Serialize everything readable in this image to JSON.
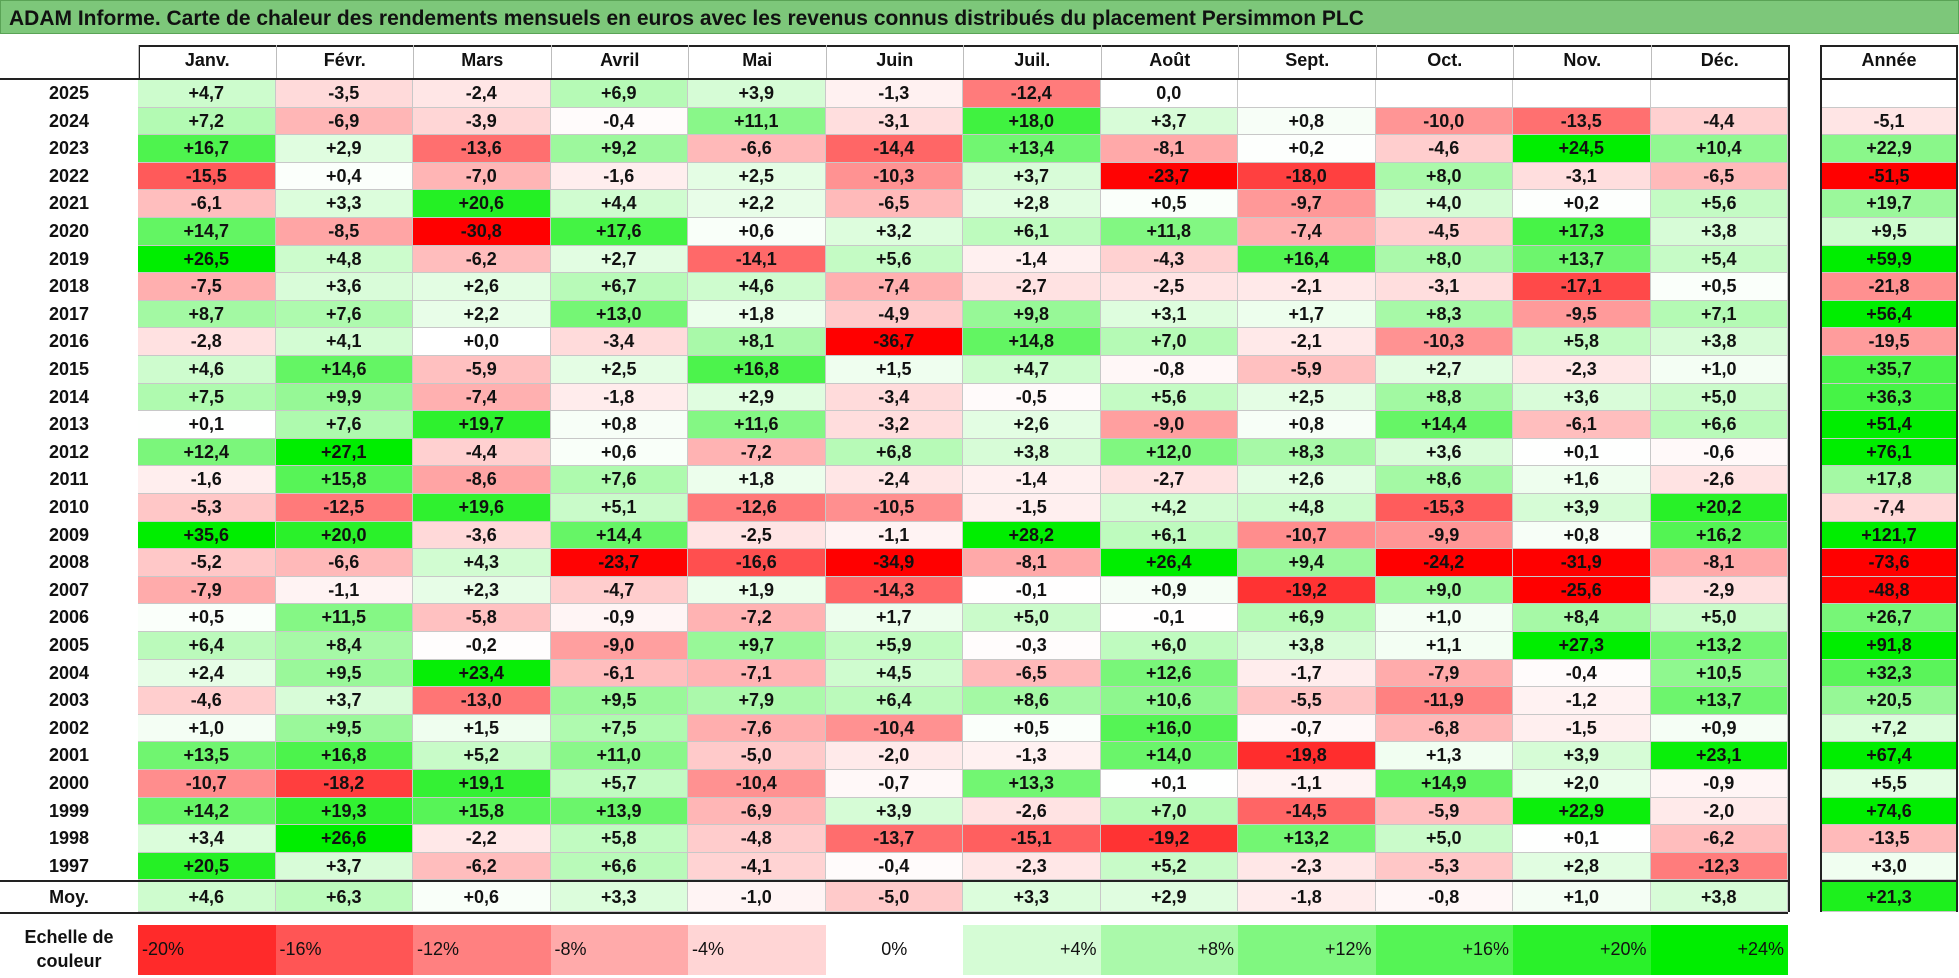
{
  "title": "ADAM Informe. Carte de chaleur des rendements mensuels en euros avec les revenus connus distribués du placement Persimmon PLC",
  "chart_data": {
    "type": "heatmap",
    "title": "ADAM Informe. Carte de chaleur des rendements mensuels en euros avec les revenus connus distribués du placement Persimmon PLC",
    "columns": [
      "Janv.",
      "Févr.",
      "Mars",
      "Avril",
      "Mai",
      "Juin",
      "Juil.",
      "Août",
      "Sept.",
      "Oct.",
      "Nov.",
      "Déc."
    ],
    "year_header": "Année",
    "rows": [
      {
        "year": "2025",
        "values": [
          "+4,7",
          "-3,5",
          "-2,4",
          "+6,9",
          "+3,9",
          "-1,3",
          "-12,4",
          "0,0",
          "",
          "",
          "",
          ""
        ],
        "annual": ""
      },
      {
        "year": "2024",
        "values": [
          "+7,2",
          "-6,9",
          "-3,9",
          "-0,4",
          "+11,1",
          "-3,1",
          "+18,0",
          "+3,7",
          "+0,8",
          "-10,0",
          "-13,5",
          "-4,4"
        ],
        "annual": "-5,1"
      },
      {
        "year": "2023",
        "values": [
          "+16,7",
          "+2,9",
          "-13,6",
          "+9,2",
          "-6,6",
          "-14,4",
          "+13,4",
          "-8,1",
          "+0,2",
          "-4,6",
          "+24,5",
          "+10,4"
        ],
        "annual": "+22,9"
      },
      {
        "year": "2022",
        "values": [
          "-15,5",
          "+0,4",
          "-7,0",
          "-1,6",
          "+2,5",
          "-10,3",
          "+3,7",
          "-23,7",
          "-18,0",
          "+8,0",
          "-3,1",
          "-6,5"
        ],
        "annual": "-51,5"
      },
      {
        "year": "2021",
        "values": [
          "-6,1",
          "+3,3",
          "+20,6",
          "+4,4",
          "+2,2",
          "-6,5",
          "+2,8",
          "+0,5",
          "-9,7",
          "+4,0",
          "+0,2",
          "+5,6"
        ],
        "annual": "+19,7"
      },
      {
        "year": "2020",
        "values": [
          "+14,7",
          "-8,5",
          "-30,8",
          "+17,6",
          "+0,6",
          "+3,2",
          "+6,1",
          "+11,8",
          "-7,4",
          "-4,5",
          "+17,3",
          "+3,8"
        ],
        "annual": "+9,5"
      },
      {
        "year": "2019",
        "values": [
          "+26,5",
          "+4,8",
          "-6,2",
          "+2,7",
          "-14,1",
          "+5,6",
          "-1,4",
          "-4,3",
          "+16,4",
          "+8,0",
          "+13,7",
          "+5,4"
        ],
        "annual": "+59,9"
      },
      {
        "year": "2018",
        "values": [
          "-7,5",
          "+3,6",
          "+2,6",
          "+6,7",
          "+4,6",
          "-7,4",
          "-2,7",
          "-2,5",
          "-2,1",
          "-3,1",
          "-17,1",
          "+0,5"
        ],
        "annual": "-21,8"
      },
      {
        "year": "2017",
        "values": [
          "+8,7",
          "+7,6",
          "+2,2",
          "+13,0",
          "+1,8",
          "-4,9",
          "+9,8",
          "+3,1",
          "+1,7",
          "+8,3",
          "-9,5",
          "+7,1"
        ],
        "annual": "+56,4"
      },
      {
        "year": "2016",
        "values": [
          "-2,8",
          "+4,1",
          "+0,0",
          "-3,4",
          "+8,1",
          "-36,7",
          "+14,8",
          "+7,0",
          "-2,1",
          "-10,3",
          "+5,8",
          "+3,8"
        ],
        "annual": "-19,5"
      },
      {
        "year": "2015",
        "values": [
          "+4,6",
          "+14,6",
          "-5,9",
          "+2,5",
          "+16,8",
          "+1,5",
          "+4,7",
          "-0,8",
          "-5,9",
          "+2,7",
          "-2,3",
          "+1,0"
        ],
        "annual": "+35,7"
      },
      {
        "year": "2014",
        "values": [
          "+7,5",
          "+9,9",
          "-7,4",
          "-1,8",
          "+2,9",
          "-3,4",
          "-0,5",
          "+5,6",
          "+2,5",
          "+8,8",
          "+3,6",
          "+5,0"
        ],
        "annual": "+36,3"
      },
      {
        "year": "2013",
        "values": [
          "+0,1",
          "+7,6",
          "+19,7",
          "+0,8",
          "+11,6",
          "-3,2",
          "+2,6",
          "-9,0",
          "+0,8",
          "+14,4",
          "-6,1",
          "+6,6"
        ],
        "annual": "+51,4"
      },
      {
        "year": "2012",
        "values": [
          "+12,4",
          "+27,1",
          "-4,4",
          "+0,6",
          "-7,2",
          "+6,8",
          "+3,8",
          "+12,0",
          "+8,3",
          "+3,6",
          "+0,1",
          "-0,6"
        ],
        "annual": "+76,1"
      },
      {
        "year": "2011",
        "values": [
          "-1,6",
          "+15,8",
          "-8,6",
          "+7,6",
          "+1,8",
          "-2,4",
          "-1,4",
          "-2,7",
          "+2,6",
          "+8,6",
          "+1,6",
          "-2,6"
        ],
        "annual": "+17,8"
      },
      {
        "year": "2010",
        "values": [
          "-5,3",
          "-12,5",
          "+19,6",
          "+5,1",
          "-12,6",
          "-10,5",
          "-1,5",
          "+4,2",
          "+4,8",
          "-15,3",
          "+3,9",
          "+20,2"
        ],
        "annual": "-7,4"
      },
      {
        "year": "2009",
        "values": [
          "+35,6",
          "+20,0",
          "-3,6",
          "+14,4",
          "-2,5",
          "-1,1",
          "+28,2",
          "+6,1",
          "-10,7",
          "-9,9",
          "+0,8",
          "+16,2"
        ],
        "annual": "+121,7"
      },
      {
        "year": "2008",
        "values": [
          "-5,2",
          "-6,6",
          "+4,3",
          "-23,7",
          "-16,6",
          "-34,9",
          "-8,1",
          "+26,4",
          "+9,4",
          "-24,2",
          "-31,9",
          "-8,1"
        ],
        "annual": "-73,6"
      },
      {
        "year": "2007",
        "values": [
          "-7,9",
          "-1,1",
          "+2,3",
          "-4,7",
          "+1,9",
          "-14,3",
          "-0,1",
          "+0,9",
          "-19,2",
          "+9,0",
          "-25,6",
          "-2,9"
        ],
        "annual": "-48,8"
      },
      {
        "year": "2006",
        "values": [
          "+0,5",
          "+11,5",
          "-5,8",
          "-0,9",
          "-7,2",
          "+1,7",
          "+5,0",
          "-0,1",
          "+6,9",
          "+1,0",
          "+8,4",
          "+5,0"
        ],
        "annual": "+26,7"
      },
      {
        "year": "2005",
        "values": [
          "+6,4",
          "+8,4",
          "-0,2",
          "-9,0",
          "+9,7",
          "+5,9",
          "-0,3",
          "+6,0",
          "+3,8",
          "+1,1",
          "+27,3",
          "+13,2"
        ],
        "annual": "+91,8"
      },
      {
        "year": "2004",
        "values": [
          "+2,4",
          "+9,5",
          "+23,4",
          "-6,1",
          "-7,1",
          "+4,5",
          "-6,5",
          "+12,6",
          "-1,7",
          "-7,9",
          "-0,4",
          "+10,5"
        ],
        "annual": "+32,3"
      },
      {
        "year": "2003",
        "values": [
          "-4,6",
          "+3,7",
          "-13,0",
          "+9,5",
          "+7,9",
          "+6,4",
          "+8,6",
          "+10,6",
          "-5,5",
          "-11,9",
          "-1,2",
          "+13,7"
        ],
        "annual": "+20,5"
      },
      {
        "year": "2002",
        "values": [
          "+1,0",
          "+9,5",
          "+1,5",
          "+7,5",
          "-7,6",
          "-10,4",
          "+0,5",
          "+16,0",
          "-0,7",
          "-6,8",
          "-1,5",
          "+0,9"
        ],
        "annual": "+7,2"
      },
      {
        "year": "2001",
        "values": [
          "+13,5",
          "+16,8",
          "+5,2",
          "+11,0",
          "-5,0",
          "-2,0",
          "-1,3",
          "+14,0",
          "-19,8",
          "+1,3",
          "+3,9",
          "+23,1"
        ],
        "annual": "+67,4"
      },
      {
        "year": "2000",
        "values": [
          "-10,7",
          "-18,2",
          "+19,1",
          "+5,7",
          "-10,4",
          "-0,7",
          "+13,3",
          "+0,1",
          "-1,1",
          "+14,9",
          "+2,0",
          "-0,9"
        ],
        "annual": "+5,5"
      },
      {
        "year": "1999",
        "values": [
          "+14,2",
          "+19,3",
          "+15,8",
          "+13,9",
          "-6,9",
          "+3,9",
          "-2,6",
          "+7,0",
          "-14,5",
          "-5,9",
          "+22,9",
          "-2,0"
        ],
        "annual": "+74,6"
      },
      {
        "year": "1998",
        "values": [
          "+3,4",
          "+26,6",
          "-2,2",
          "+5,8",
          "-4,8",
          "-13,7",
          "-15,1",
          "-19,2",
          "+13,2",
          "+5,0",
          "+0,1",
          "-6,2"
        ],
        "annual": "-13,5"
      },
      {
        "year": "1997",
        "values": [
          "+20,5",
          "+3,7",
          "-6,2",
          "+6,6",
          "-4,1",
          "-0,4",
          "-2,3",
          "+5,2",
          "-2,3",
          "-5,3",
          "+2,8",
          "-12,3"
        ],
        "annual": "+3,0"
      }
    ],
    "average": {
      "label": "Moy.",
      "values": [
        "+4,6",
        "+6,3",
        "+0,6",
        "+3,3",
        "-1,0",
        "-5,0",
        "+3,3",
        "+2,9",
        "-1,8",
        "-0,8",
        "+1,0",
        "+3,8"
      ],
      "annual": "+21,3"
    },
    "scale": {
      "label": "Echelle de couleur",
      "steps": [
        "-20%",
        "-16%",
        "-12%",
        "-8%",
        "-4%",
        "0%",
        "+4%",
        "+8%",
        "+12%",
        "+16%",
        "+20%",
        "+24%"
      ]
    },
    "colors": {
      "negative_max": "#ff0000",
      "neutral": "#ffffff",
      "positive_max": "#00ee00",
      "title_bg": "#7dc77a"
    }
  }
}
